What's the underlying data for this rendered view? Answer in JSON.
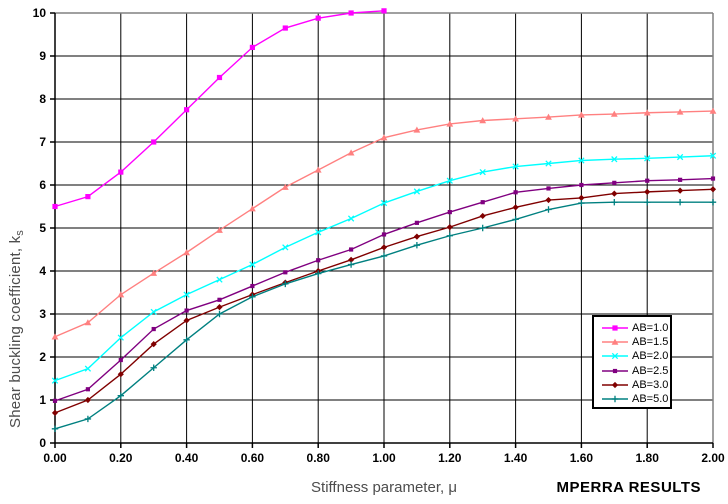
{
  "chart_data": {
    "type": "line",
    "title": "",
    "xlabel": "Stiffness parameter, μ",
    "ylabel": "Shear buckling coefficient, ks",
    "ylabel_main": "Shear buckling coefficient, k",
    "ylabel_sub": "s",
    "xlim": [
      0,
      2.0
    ],
    "ylim": [
      0,
      10
    ],
    "grid": true,
    "legend_position": "right-middle",
    "x_ticks": [
      "0.00",
      "0.20",
      "0.40",
      "0.60",
      "0.80",
      "1.00",
      "1.20",
      "1.40",
      "1.60",
      "1.80",
      "2.00"
    ],
    "y_ticks": [
      "0",
      "1",
      "2",
      "3",
      "4",
      "5",
      "6",
      "7",
      "8",
      "9",
      "10"
    ],
    "x": [
      0.0,
      0.1,
      0.2,
      0.3,
      0.4,
      0.5,
      0.6,
      0.7,
      0.8,
      0.9,
      1.0,
      1.1,
      1.2,
      1.3,
      1.4,
      1.5,
      1.6,
      1.7,
      1.8,
      1.9,
      2.0
    ],
    "series": [
      {
        "name": "AB=1.0",
        "color": "#FF00FF",
        "marker": "square",
        "values": [
          5.5,
          5.73,
          6.3,
          7.0,
          7.75,
          8.5,
          9.2,
          9.65,
          9.88,
          10.0,
          10.05
        ]
      },
      {
        "name": "AB=1.5",
        "color": "#FF8080",
        "marker": "triangle",
        "values": [
          2.47,
          2.8,
          3.45,
          3.95,
          4.43,
          4.95,
          5.45,
          5.95,
          6.35,
          6.75,
          7.1,
          7.28,
          7.42,
          7.5,
          7.54,
          7.58,
          7.63,
          7.65,
          7.68,
          7.7,
          7.72
        ]
      },
      {
        "name": "AB=2.0",
        "color": "#00FFFF",
        "marker": "x",
        "values": [
          1.45,
          1.73,
          2.45,
          3.05,
          3.45,
          3.8,
          4.15,
          4.55,
          4.9,
          5.22,
          5.58,
          5.85,
          6.1,
          6.3,
          6.43,
          6.5,
          6.57,
          6.6,
          6.62,
          6.65,
          6.68
        ]
      },
      {
        "name": "AB=2.5",
        "color": "#800080",
        "marker": "square-small",
        "values": [
          0.98,
          1.25,
          1.93,
          2.65,
          3.08,
          3.33,
          3.65,
          3.97,
          4.25,
          4.5,
          4.85,
          5.12,
          5.37,
          5.6,
          5.83,
          5.92,
          6.0,
          6.05,
          6.1,
          6.12,
          6.15
        ]
      },
      {
        "name": "AB=3.0",
        "color": "#800000",
        "marker": "diamond",
        "values": [
          0.7,
          1.0,
          1.6,
          2.3,
          2.85,
          3.16,
          3.45,
          3.73,
          4.0,
          4.26,
          4.55,
          4.8,
          5.02,
          5.28,
          5.48,
          5.65,
          5.7,
          5.8,
          5.84,
          5.87,
          5.9
        ]
      },
      {
        "name": "AB=5.0",
        "color": "#008080",
        "marker": "plus",
        "values": [
          0.33,
          0.56,
          1.1,
          1.75,
          2.4,
          3.0,
          3.4,
          3.7,
          3.94,
          4.15,
          4.35,
          4.6,
          4.82,
          5.0,
          5.2,
          5.43,
          5.58,
          5.6,
          5.6,
          5.6,
          5.6
        ]
      }
    ],
    "axis_colors": {
      "gridline": "#000000",
      "plot_border": "#808080",
      "tick_label": "#000000"
    }
  },
  "footer": {
    "results_label": "MPERRA RESULTS"
  }
}
